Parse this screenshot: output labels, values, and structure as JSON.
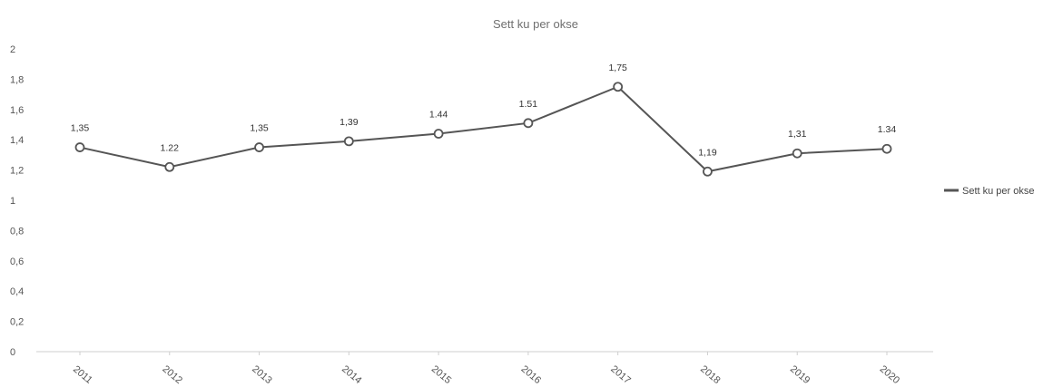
{
  "chart_data": {
    "type": "line",
    "title": "Sett ku per okse",
    "categories": [
      "2011",
      "2012",
      "2013",
      "2014",
      "2015",
      "2016",
      "2017",
      "2018",
      "2019",
      "2020"
    ],
    "series": [
      {
        "name": "Sett ku per okse",
        "values": [
          1.35,
          1.22,
          1.35,
          1.39,
          1.44,
          1.51,
          1.75,
          1.19,
          1.31,
          1.34
        ],
        "labels": [
          "1,35",
          "1.22",
          "1,35",
          "1,39",
          "1.44",
          "1.51",
          "1,75",
          "1,19",
          "1,31",
          "1.34"
        ],
        "color": "#555555"
      }
    ],
    "ylim": [
      0,
      2
    ],
    "yticks": [
      "0",
      "0,2",
      "0,4",
      "0,6",
      "0,8",
      "1",
      "1,2",
      "1,4",
      "1,6",
      "1,8",
      "2"
    ],
    "grid": false,
    "legend": "right",
    "marker": "hollow-circle"
  }
}
